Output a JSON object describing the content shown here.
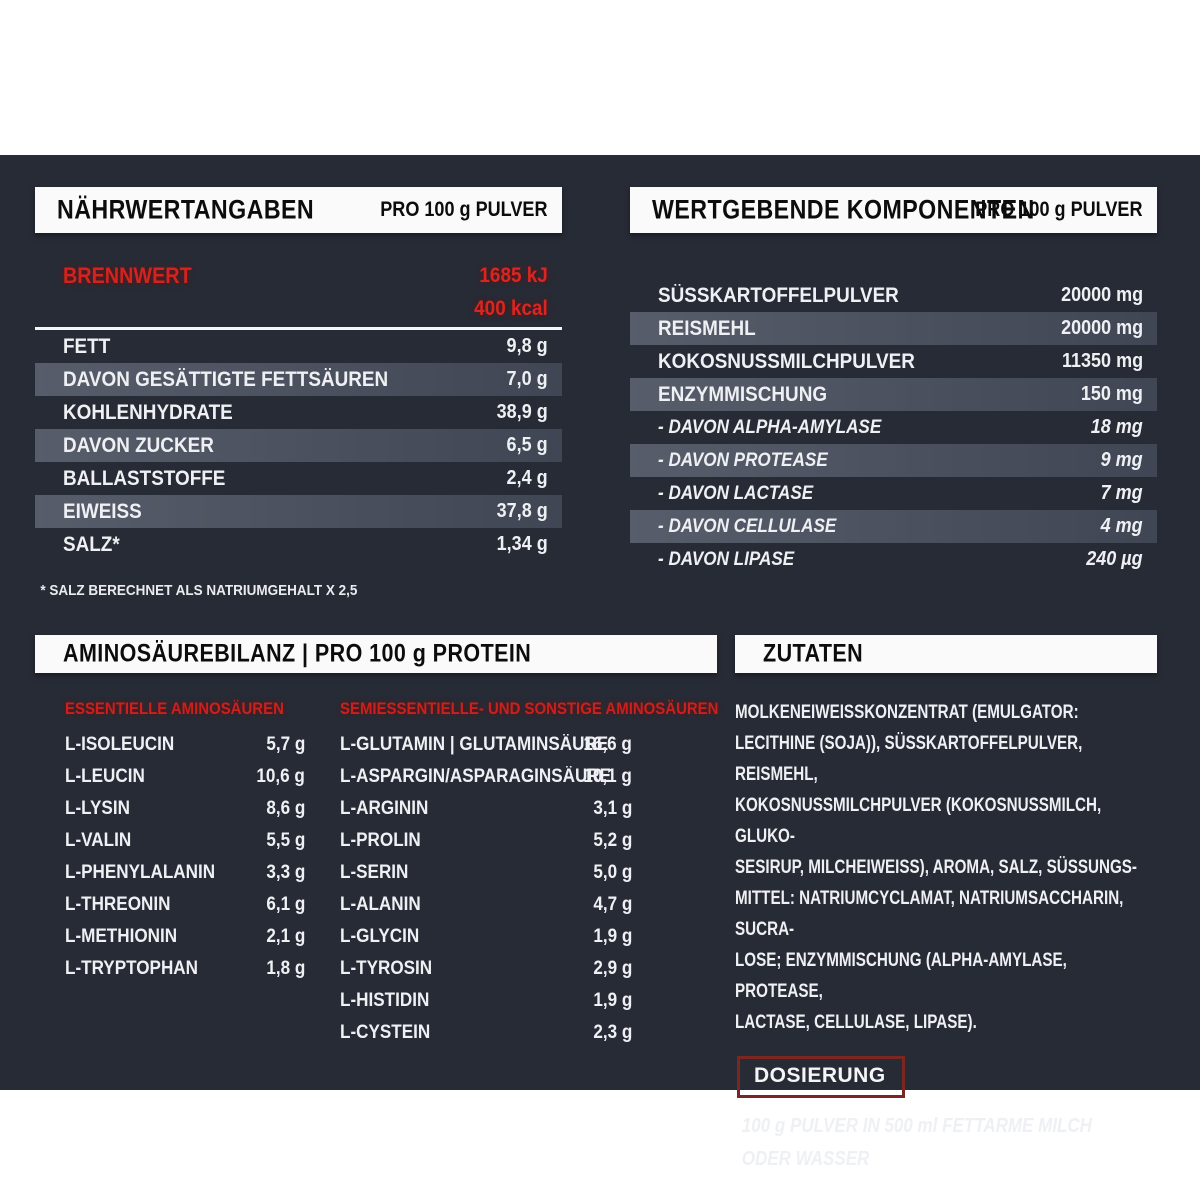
{
  "colors": {
    "panel_bg": "#272b35",
    "stripe": "#4e5461",
    "accent_red": "#d2241e",
    "dosage_border_red": "#7c2622",
    "text_white": "#eef0f3",
    "bar_white": "#fafafa"
  },
  "nutrition": {
    "title": "NÄHRWERTANGABEN",
    "per": "PRO 100 g PULVER",
    "energy": {
      "label": "BRENNWERT",
      "values": [
        "1685 kJ",
        "400 kcal"
      ]
    },
    "rows": [
      {
        "label": "FETT",
        "value": "9,8 g"
      },
      {
        "label": "DAVON GESÄTTIGTE FETTSÄUREN",
        "value": "7,0 g",
        "striped": true
      },
      {
        "label": "KOHLENHYDRATE",
        "value": "38,9 g"
      },
      {
        "label": "DAVON ZUCKER",
        "value": "6,5 g",
        "striped": true
      },
      {
        "label": "BALLASTSTOFFE",
        "value": "2,4 g"
      },
      {
        "label": "EIWEISS",
        "value": "37,8 g",
        "striped": true
      },
      {
        "label": "SALZ*",
        "value": "1,34 g"
      }
    ],
    "footnote": "* SALZ BERECHNET ALS NATRIUMGEHALT X 2,5"
  },
  "components": {
    "title": "WERTGEBENDE KOMPONENTEN",
    "per": "PRO 100 g PULVER",
    "rows": [
      {
        "label": "SÜSSKARTOFFELPULVER",
        "value": "20000 mg"
      },
      {
        "label": "REISMEHL",
        "value": "20000 mg",
        "striped": true
      },
      {
        "label": "KOKOSNUSSMILCHPULVER",
        "value": "11350 mg"
      },
      {
        "label": "ENZYMMISCHUNG",
        "value": "150 mg",
        "striped": true
      },
      {
        "label": "- DAVON ALPHA-AMYLASE",
        "value": "18 mg",
        "italic": true
      },
      {
        "label": "- DAVON PROTEASE",
        "value": "9 mg",
        "striped": true,
        "italic": true
      },
      {
        "label": "- DAVON LACTASE",
        "value": "7 mg",
        "italic": true
      },
      {
        "label": "- DAVON CELLULASE",
        "value": "4 mg",
        "striped": true,
        "italic": true
      },
      {
        "label": "- DAVON LIPASE",
        "value": "240 µg",
        "italic": true
      }
    ]
  },
  "amino": {
    "title": "AMINOSÄUREBILANZ | PRO 100 g PROTEIN",
    "essential": {
      "header": "ESSENTIELLE AMINOSÄUREN",
      "rows": [
        {
          "label": "L-ISOLEUCIN",
          "value": "5,7 g"
        },
        {
          "label": "L-LEUCIN",
          "value": "10,6 g"
        },
        {
          "label": "L-LYSIN",
          "value": "8,6 g"
        },
        {
          "label": "L-VALIN",
          "value": "5,5 g"
        },
        {
          "label": "L-PHENYLALANIN",
          "value": "3,3 g"
        },
        {
          "label": "L-THREONIN",
          "value": "6,1 g"
        },
        {
          "label": "L-METHIONIN",
          "value": "2,1 g"
        },
        {
          "label": "L-TRYPTOPHAN",
          "value": "1,8 g"
        }
      ]
    },
    "other": {
      "header": "SEMIESSENTIELLE- UND SONSTIGE AMINOSÄUREN",
      "rows": [
        {
          "label": "L-GLUTAMIN | GLUTAMINSÄURE",
          "value": "16,6 g"
        },
        {
          "label": "L-ASPARGIN/ASPARAGINSÄURE",
          "value": "10,1 g"
        },
        {
          "label": "L-ARGININ",
          "value": "3,1 g"
        },
        {
          "label": "L-PROLIN",
          "value": "5,2 g"
        },
        {
          "label": "L-SERIN",
          "value": "5,0 g"
        },
        {
          "label": "L-ALANIN",
          "value": "4,7 g"
        },
        {
          "label": "L-GLYCIN",
          "value": "1,9 g"
        },
        {
          "label": "L-TYROSIN",
          "value": "2,9 g"
        },
        {
          "label": "L-HISTIDIN",
          "value": "1,9 g"
        },
        {
          "label": "L-CYSTEIN",
          "value": "2,3 g"
        }
      ]
    }
  },
  "ingredients": {
    "title": "ZUTATEN",
    "text": "MOLKENEIWEISSKONZENTRAT (EMULGATOR:\nLECITHINE (SOJA)), SÜSSKARTOFFELPULVER, REISMEHL,\nKOKOSNUSSMILCHPULVER (KOKOSNUSSMILCH, GLUKO-\nSESIRUP, MILCHEIWEISS), AROMA, SALZ, SÜSSUNGS-\nMITTEL: NATRIUMCYCLAMAT, NATRIUMSACCHARIN, SUCRA-\nLOSE; ENZYMMISCHUNG (ALPHA-AMYLASE, PROTEASE,\nLACTASE, CELLULASE, LIPASE)."
  },
  "dosage": {
    "title": "DOSIERUNG",
    "text": "100 g PULVER IN 500 ml FETTARME MILCH\nODER WASSER"
  }
}
